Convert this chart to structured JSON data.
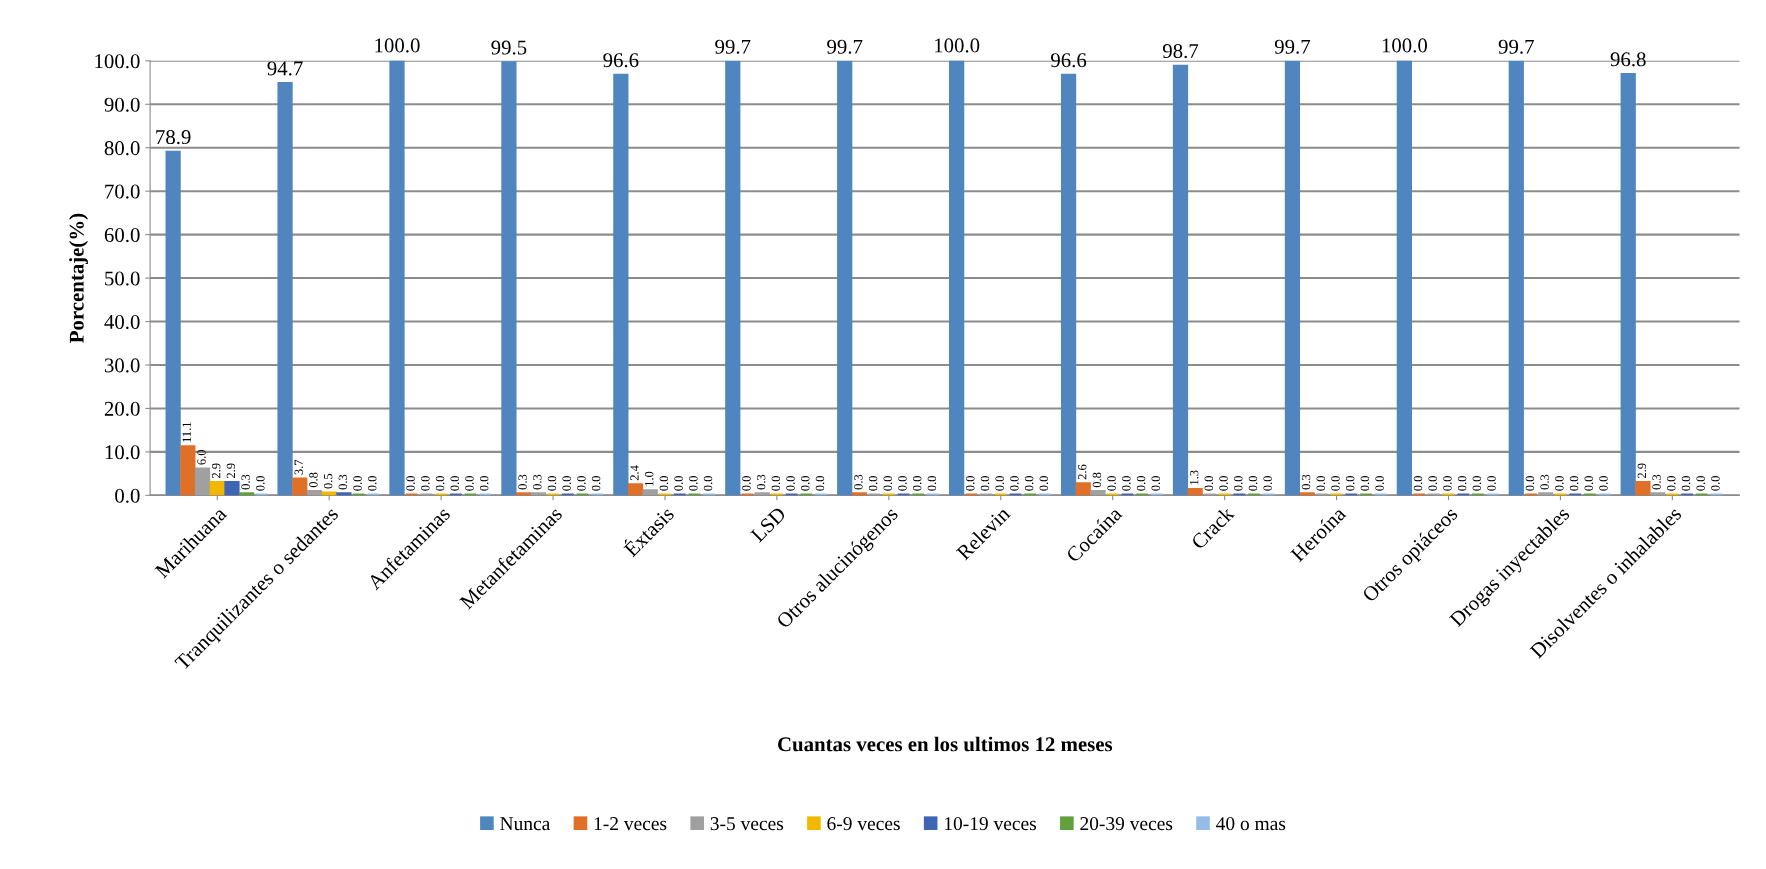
{
  "chart_data": {
    "type": "bar",
    "xlabel": "Cuantas veces en los ultimos 12 meses",
    "ylabel": "Porcentaje(%)",
    "categories": [
      "Marihuana",
      "Tranquilizantes o sedantes",
      "Anfetaminas",
      "Metanfetaminas",
      "Éxtasis",
      "LSD",
      "Otros alucinógenos",
      "Relevin",
      "Cocaína",
      "Crack",
      "Heroína",
      "Otros opiáceos",
      "Drogas inyectables",
      "Disolventes o inhalables"
    ],
    "series": [
      {
        "name": "Nunca",
        "color": "#4f86c0",
        "values": [
          78.9,
          94.7,
          100.0,
          99.5,
          96.6,
          99.7,
          99.7,
          100.0,
          96.6,
          98.7,
          99.7,
          100.0,
          99.7,
          96.8
        ],
        "value_labels": [
          "78.9",
          "94.7",
          "100.0",
          "99.5",
          "96.6",
          "99.7",
          "99.7",
          "100.0",
          "96.6",
          "98.7",
          "99.7",
          "100.0",
          "99.7",
          "96.8"
        ]
      },
      {
        "name": "1-2 veces",
        "color": "#e07028",
        "values": [
          11.1,
          3.7,
          0.0,
          0.3,
          2.4,
          0.0,
          0.3,
          0.0,
          2.6,
          1.3,
          0.3,
          0.0,
          0.0,
          2.9
        ],
        "value_labels": [
          "11.1",
          "3.7",
          "0.0",
          "0.3",
          "2.4",
          "0.0",
          "0.3",
          "0.0",
          "2.6",
          "1.3",
          "0.3",
          "0.0",
          "0.0",
          "2.9"
        ]
      },
      {
        "name": "3-5 veces",
        "color": "#a0a0a0",
        "values": [
          6.0,
          0.8,
          0.0,
          0.3,
          1.0,
          0.3,
          0.0,
          0.0,
          0.8,
          0.0,
          0.0,
          0.0,
          0.3,
          0.3
        ],
        "value_labels": [
          "6.0",
          "0.8",
          "0.0",
          "0.3",
          "1.0",
          "0.3",
          "0.0",
          "0.0",
          "0.8",
          "0.0",
          "0.0",
          "0.0",
          "0.3",
          "0.3"
        ]
      },
      {
        "name": "6-9 veces",
        "color": "#f2b800",
        "values": [
          2.9,
          0.5,
          0.0,
          0.0,
          0.0,
          0.0,
          0.0,
          0.0,
          0.0,
          0.0,
          0.0,
          0.0,
          0.0,
          0.0
        ],
        "value_labels": [
          "2.9",
          "0.5",
          "0.0",
          "0.0",
          "0.0",
          "0.0",
          "0.0",
          "0.0",
          "0.0",
          "0.0",
          "0.0",
          "0.0",
          "0.0",
          "0.0"
        ]
      },
      {
        "name": "10-19 veces",
        "color": "#3f66b4",
        "values": [
          2.9,
          0.3,
          0.0,
          0.0,
          0.0,
          0.0,
          0.0,
          0.0,
          0.0,
          0.0,
          0.0,
          0.0,
          0.0,
          0.0
        ],
        "value_labels": [
          "2.9",
          "0.3",
          "0.0",
          "0.0",
          "0.0",
          "0.0",
          "0.0",
          "0.0",
          "0.0",
          "0.0",
          "0.0",
          "0.0",
          "0.0",
          "0.0"
        ]
      },
      {
        "name": "20-39 veces",
        "color": "#62a03e",
        "values": [
          0.3,
          0.0,
          0.0,
          0.0,
          0.0,
          0.0,
          0.0,
          0.0,
          0.0,
          0.0,
          0.0,
          0.0,
          0.0,
          0.0
        ],
        "value_labels": [
          "0.3",
          "0.0",
          "0.0",
          "0.0",
          "0.0",
          "0.0",
          "0.0",
          "0.0",
          "0.0",
          "0.0",
          "0.0",
          "0.0",
          "0.0",
          "0.0"
        ]
      },
      {
        "name": "40 o mas",
        "color": "#94bce4",
        "values": [
          0.0,
          0.0,
          0.0,
          0.0,
          0.0,
          0.0,
          0.0,
          0.0,
          0.0,
          0.0,
          0.0,
          0.0,
          0.0,
          0.0
        ],
        "value_labels": [
          "0.0",
          "0.0",
          "0.0",
          "0.0",
          "0.0",
          "0.0",
          "0.0",
          "0.0",
          "0.0",
          "0.0",
          "0.0",
          "0.0",
          "0.0",
          "0.0"
        ]
      }
    ],
    "ylim": [
      0,
      100
    ],
    "yticks": [
      {
        "value": 0,
        "label": "0.0"
      },
      {
        "value": 10,
        "label": "10.0"
      },
      {
        "value": 20,
        "label": "20.0"
      },
      {
        "value": 30,
        "label": "30.0"
      },
      {
        "value": 40,
        "label": "40.0"
      },
      {
        "value": 50,
        "label": "50.0"
      },
      {
        "value": 60,
        "label": "60.0"
      },
      {
        "value": 70,
        "label": "70.0"
      },
      {
        "value": 80,
        "label": "80.0"
      },
      {
        "value": 90,
        "label": "90.0"
      },
      {
        "value": 100,
        "label": "100.0"
      }
    ],
    "grid": "y",
    "legend": "bottom"
  }
}
